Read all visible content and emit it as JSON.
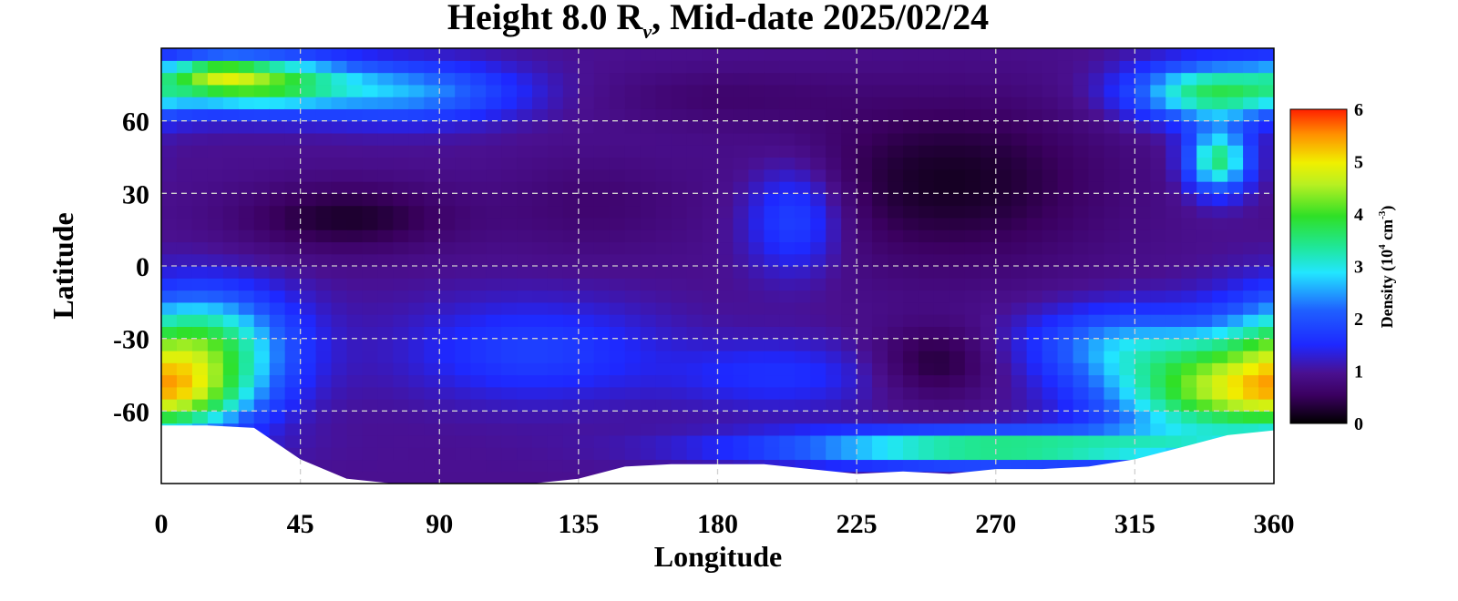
{
  "chart_data": {
    "type": "heatmap",
    "title": {
      "prefix": "Height 8.0 R",
      "subscript": "v",
      "suffix": ", Mid-date 2025/02/24"
    },
    "xlabel": "Longitude",
    "ylabel": "Latitude",
    "xlim": [
      0,
      360
    ],
    "ylim": [
      -90,
      90
    ],
    "x_ticks": [
      0,
      45,
      90,
      135,
      180,
      225,
      270,
      315,
      360
    ],
    "y_ticks": [
      60,
      30,
      0,
      -30,
      -60
    ],
    "grid": true,
    "colorbar": {
      "label_prefix": "Density (10",
      "label_exp1": "4",
      "label_mid": " cm",
      "label_exp2": "-3",
      "label_suffix": ")",
      "range": [
        0,
        6
      ],
      "ticks": [
        6,
        5,
        4,
        3,
        2,
        1,
        0
      ]
    },
    "colors": {
      "grid": "#cfcfcf",
      "contour": "#000000",
      "no_data": "#ffffff"
    },
    "grid_resolution": {
      "dx": 5,
      "dy": 5
    },
    "background_level": 1.0,
    "density_features": [
      {
        "lon": 30,
        "lat": 76,
        "rlon": 30,
        "rlat": 11,
        "amp": 3.0
      },
      {
        "lon": 80,
        "lat": 72,
        "rlon": 35,
        "rlat": 12,
        "amp": 1.5
      },
      {
        "lon": 18,
        "lat": 80,
        "rlon": 14,
        "rlat": 6,
        "amp": 1.2
      },
      {
        "lon": 340,
        "lat": 72,
        "rlon": 26,
        "rlat": 12,
        "amp": 2.6
      },
      {
        "lon": 342,
        "lat": 44,
        "rlon": 10,
        "rlat": 13,
        "amp": 2.6
      },
      {
        "lon": 12,
        "lat": -33,
        "rlon": 28,
        "rlat": 22,
        "amp": 2.8
      },
      {
        "lon": 8,
        "lat": -55,
        "rlon": 22,
        "rlat": 14,
        "amp": 1.3
      },
      {
        "lon": 120,
        "lat": -35,
        "rlon": 40,
        "rlat": 20,
        "amp": 0.8
      },
      {
        "lon": 200,
        "lat": -45,
        "rlon": 35,
        "rlat": 14,
        "amp": 0.6
      },
      {
        "lon": 205,
        "lat": 20,
        "rlon": 16,
        "rlat": 22,
        "amp": 1.0
      },
      {
        "lon": 270,
        "lat": -75,
        "rlon": 70,
        "rlat": 7,
        "amp": 2.8
      },
      {
        "lon": 340,
        "lat": -52,
        "rlon": 35,
        "rlat": 20,
        "amp": 3.0
      },
      {
        "lon": 310,
        "lat": -32,
        "rlon": 30,
        "rlat": 15,
        "amp": 1.3
      },
      {
        "lon": 60,
        "lat": 20,
        "rlon": 35,
        "rlat": 14,
        "amp": -0.75
      },
      {
        "lon": 255,
        "lat": 35,
        "rlon": 50,
        "rlat": 35,
        "amp": -0.8
      },
      {
        "lon": 250,
        "lat": -40,
        "rlon": 20,
        "rlat": 15,
        "amp": -0.7
      },
      {
        "lon": 140,
        "lat": 25,
        "rlon": 30,
        "rlat": 20,
        "amp": -0.3
      },
      {
        "lon": 180,
        "lat": 70,
        "rlon": 40,
        "rlat": 12,
        "amp": -0.3
      }
    ],
    "no_data_boundary": [
      [
        0,
        -66
      ],
      [
        15,
        -66
      ],
      [
        30,
        -67
      ],
      [
        45,
        -80
      ],
      [
        60,
        -88
      ],
      [
        75,
        -90
      ],
      [
        90,
        -90
      ],
      [
        120,
        -90
      ],
      [
        135,
        -88
      ],
      [
        150,
        -83
      ],
      [
        165,
        -82
      ],
      [
        180,
        -82
      ],
      [
        195,
        -82
      ],
      [
        210,
        -84
      ],
      [
        225,
        -86
      ],
      [
        240,
        -85
      ],
      [
        255,
        -86
      ],
      [
        270,
        -84
      ],
      [
        285,
        -84
      ],
      [
        300,
        -83
      ],
      [
        315,
        -80
      ],
      [
        330,
        -75
      ],
      [
        345,
        -70
      ],
      [
        360,
        -68
      ]
    ]
  }
}
